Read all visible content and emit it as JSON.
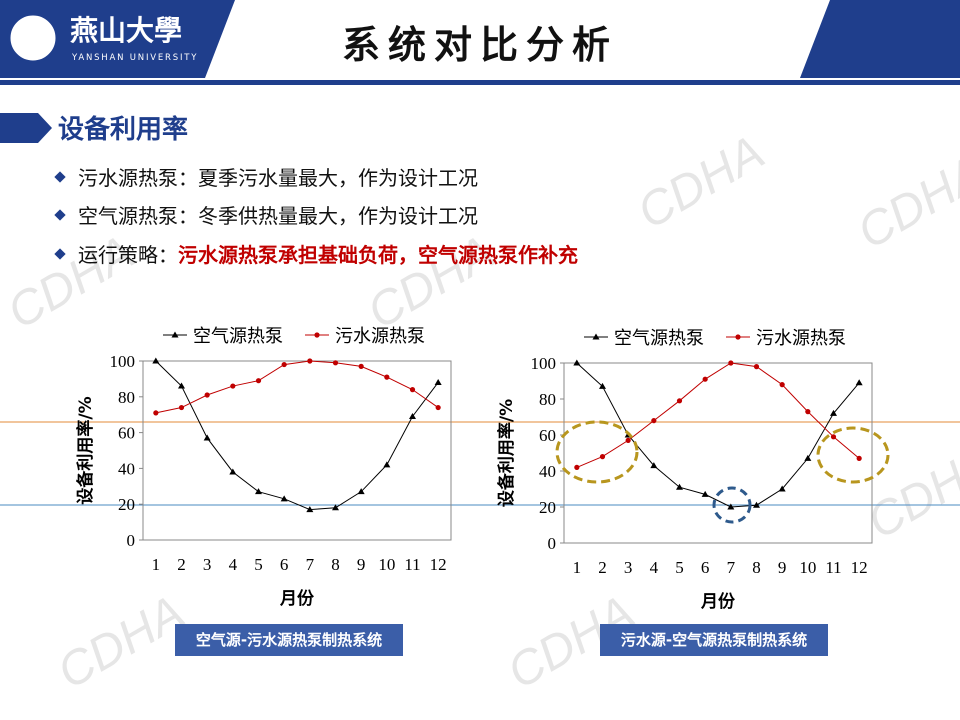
{
  "header": {
    "logo_name": "燕山大學",
    "logo_sub": "YANSHAN UNIVERSITY",
    "title": "系统对比分析"
  },
  "section": "设备利用率",
  "bullets": [
    "污水源热泵：夏季污水量最大，作为设计工况",
    "空气源热泵：冬季供热量最大，作为设计工况"
  ],
  "strategy": {
    "label": "运行策略：",
    "text": "污水源热泵承担基础负荷，空气源热泵作补充"
  },
  "watermark": "CDHA",
  "captions": [
    "空气源-污水源热泵制热系统",
    "污水源-空气源热泵制热系统"
  ],
  "chart_data": [
    {
      "type": "line",
      "ylabel": "设备利用率/%",
      "xlabel": "月份",
      "categories": [
        "1",
        "2",
        "3",
        "4",
        "5",
        "6",
        "7",
        "8",
        "9",
        "10",
        "11",
        "12"
      ],
      "ylim": [
        0,
        100
      ],
      "yticks": [
        0,
        20,
        40,
        60,
        80,
        100
      ],
      "series": [
        {
          "name": "空气源热泵",
          "color": "#000000",
          "marker": "triangle",
          "values": [
            100,
            86,
            57,
            38,
            27,
            23,
            17,
            18,
            27,
            42,
            69,
            88
          ]
        },
        {
          "name": "污水源热泵",
          "color": "#c00000",
          "marker": "circle",
          "values": [
            71,
            74,
            81,
            86,
            89,
            98,
            100,
            99,
            97,
            91,
            84,
            74
          ]
        }
      ]
    },
    {
      "type": "line",
      "ylabel": "设备利用率/%",
      "xlabel": "月份",
      "categories": [
        "1",
        "2",
        "3",
        "4",
        "5",
        "6",
        "7",
        "8",
        "9",
        "10",
        "11",
        "12"
      ],
      "ylim": [
        0,
        100
      ],
      "yticks": [
        0,
        20,
        40,
        60,
        80,
        100
      ],
      "series": [
        {
          "name": "空气源热泵",
          "color": "#000000",
          "marker": "triangle",
          "values": [
            100,
            87,
            60,
            43,
            31,
            27,
            20,
            21,
            30,
            47,
            72,
            89
          ]
        },
        {
          "name": "污水源热泵",
          "color": "#c00000",
          "marker": "circle",
          "values": [
            42,
            48,
            57,
            68,
            79,
            91,
            100,
            98,
            88,
            73,
            59,
            47
          ]
        }
      ]
    }
  ]
}
